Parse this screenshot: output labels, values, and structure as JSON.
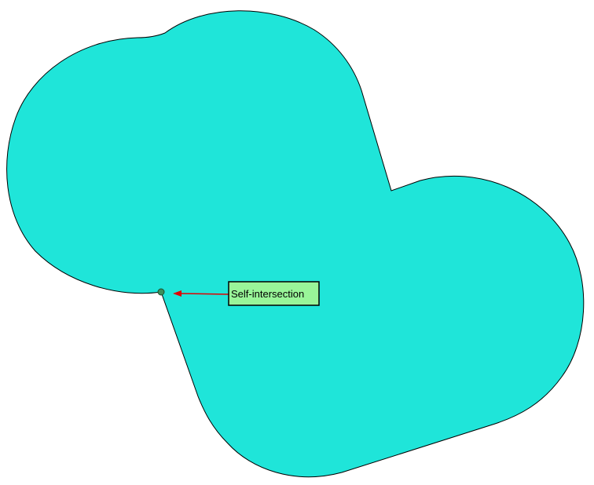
{
  "diagram": {
    "shape_fill": "#1fe5d9",
    "shape_stroke": "#000000",
    "annotation": {
      "text": "Self-intersection",
      "box_fill": "#99f599",
      "box_stroke": "#000000",
      "arrow_color": "#e00000",
      "marker_fill": "#3b8f5a"
    }
  }
}
